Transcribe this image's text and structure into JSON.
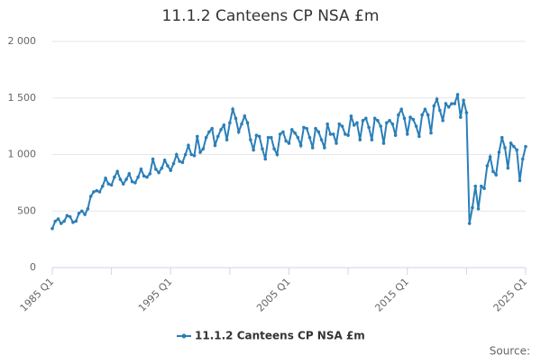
{
  "chart_data": {
    "type": "line",
    "title": "11.1.2 Canteens CP NSA £m",
    "categories": [
      "1985 Q1",
      null,
      null,
      null,
      null,
      null,
      null,
      null,
      null,
      null,
      null,
      null,
      null,
      null,
      null,
      null,
      null,
      null,
      null,
      null,
      null,
      null,
      null,
      null,
      null,
      null,
      null,
      null,
      null,
      null,
      null,
      null,
      null,
      null,
      null,
      null,
      null,
      null,
      null,
      null,
      "1995 Q1",
      null,
      null,
      null,
      null,
      null,
      null,
      null,
      null,
      null,
      null,
      null,
      null,
      null,
      null,
      null,
      null,
      null,
      null,
      null,
      null,
      null,
      null,
      null,
      null,
      null,
      null,
      null,
      null,
      null,
      null,
      null,
      null,
      null,
      null,
      null,
      null,
      null,
      null,
      null,
      "2005 Q1",
      null,
      null,
      null,
      null,
      null,
      null,
      null,
      null,
      null,
      null,
      null,
      null,
      null,
      null,
      null,
      null,
      null,
      null,
      null,
      null,
      null,
      null,
      null,
      null,
      null,
      null,
      null,
      null,
      null,
      null,
      null,
      null,
      null,
      null,
      null,
      null,
      null,
      null,
      null,
      "2015 Q1",
      null,
      null,
      null,
      null,
      null,
      null,
      null,
      null,
      null,
      null,
      null,
      null,
      null,
      null,
      null,
      null,
      null,
      null,
      null,
      null,
      null,
      null,
      null,
      null,
      null,
      null,
      null,
      null,
      null,
      null,
      null,
      null,
      null,
      null,
      null,
      null,
      null,
      null,
      null,
      "2025 Q1"
    ],
    "series": [
      {
        "name": "11.1.2 Canteens CP NSA £m",
        "color": "#2b7fb8",
        "values": [
          345,
          410,
          430,
          390,
          410,
          460,
          450,
          400,
          410,
          480,
          500,
          470,
          520,
          630,
          670,
          680,
          670,
          720,
          790,
          740,
          730,
          800,
          850,
          780,
          740,
          780,
          830,
          760,
          750,
          800,
          870,
          810,
          800,
          830,
          960,
          870,
          840,
          880,
          950,
          900,
          860,
          920,
          1000,
          940,
          930,
          1000,
          1080,
          1000,
          990,
          1160,
          1020,
          1050,
          1150,
          1200,
          1230,
          1080,
          1160,
          1220,
          1260,
          1130,
          1280,
          1400,
          1320,
          1200,
          1270,
          1340,
          1280,
          1130,
          1040,
          1170,
          1160,
          1050,
          960,
          1150,
          1150,
          1050,
          1000,
          1180,
          1200,
          1120,
          1100,
          1220,
          1190,
          1150,
          1080,
          1240,
          1230,
          1150,
          1060,
          1230,
          1200,
          1130,
          1060,
          1270,
          1180,
          1180,
          1100,
          1270,
          1250,
          1180,
          1170,
          1340,
          1260,
          1280,
          1130,
          1300,
          1320,
          1240,
          1130,
          1320,
          1300,
          1250,
          1100,
          1280,
          1300,
          1270,
          1170,
          1350,
          1400,
          1320,
          1180,
          1330,
          1310,
          1250,
          1160,
          1350,
          1400,
          1350,
          1190,
          1430,
          1490,
          1390,
          1300,
          1450,
          1420,
          1450,
          1450,
          1530,
          1330,
          1480,
          1370,
          390,
          530,
          720,
          520,
          720,
          700,
          900,
          980,
          850,
          820,
          1020,
          1150,
          1060,
          880,
          1100,
          1070,
          1040,
          770,
          960,
          1070
        ]
      }
    ],
    "ylim": [
      0,
      2000
    ],
    "yticks": [
      0,
      500,
      {
        "value": 1000,
        "label": "1 000"
      },
      {
        "value": 1500,
        "label": "1 500"
      },
      {
        "value": 2000,
        "label": "2 000"
      }
    ],
    "grid": true,
    "source": "Source:"
  }
}
